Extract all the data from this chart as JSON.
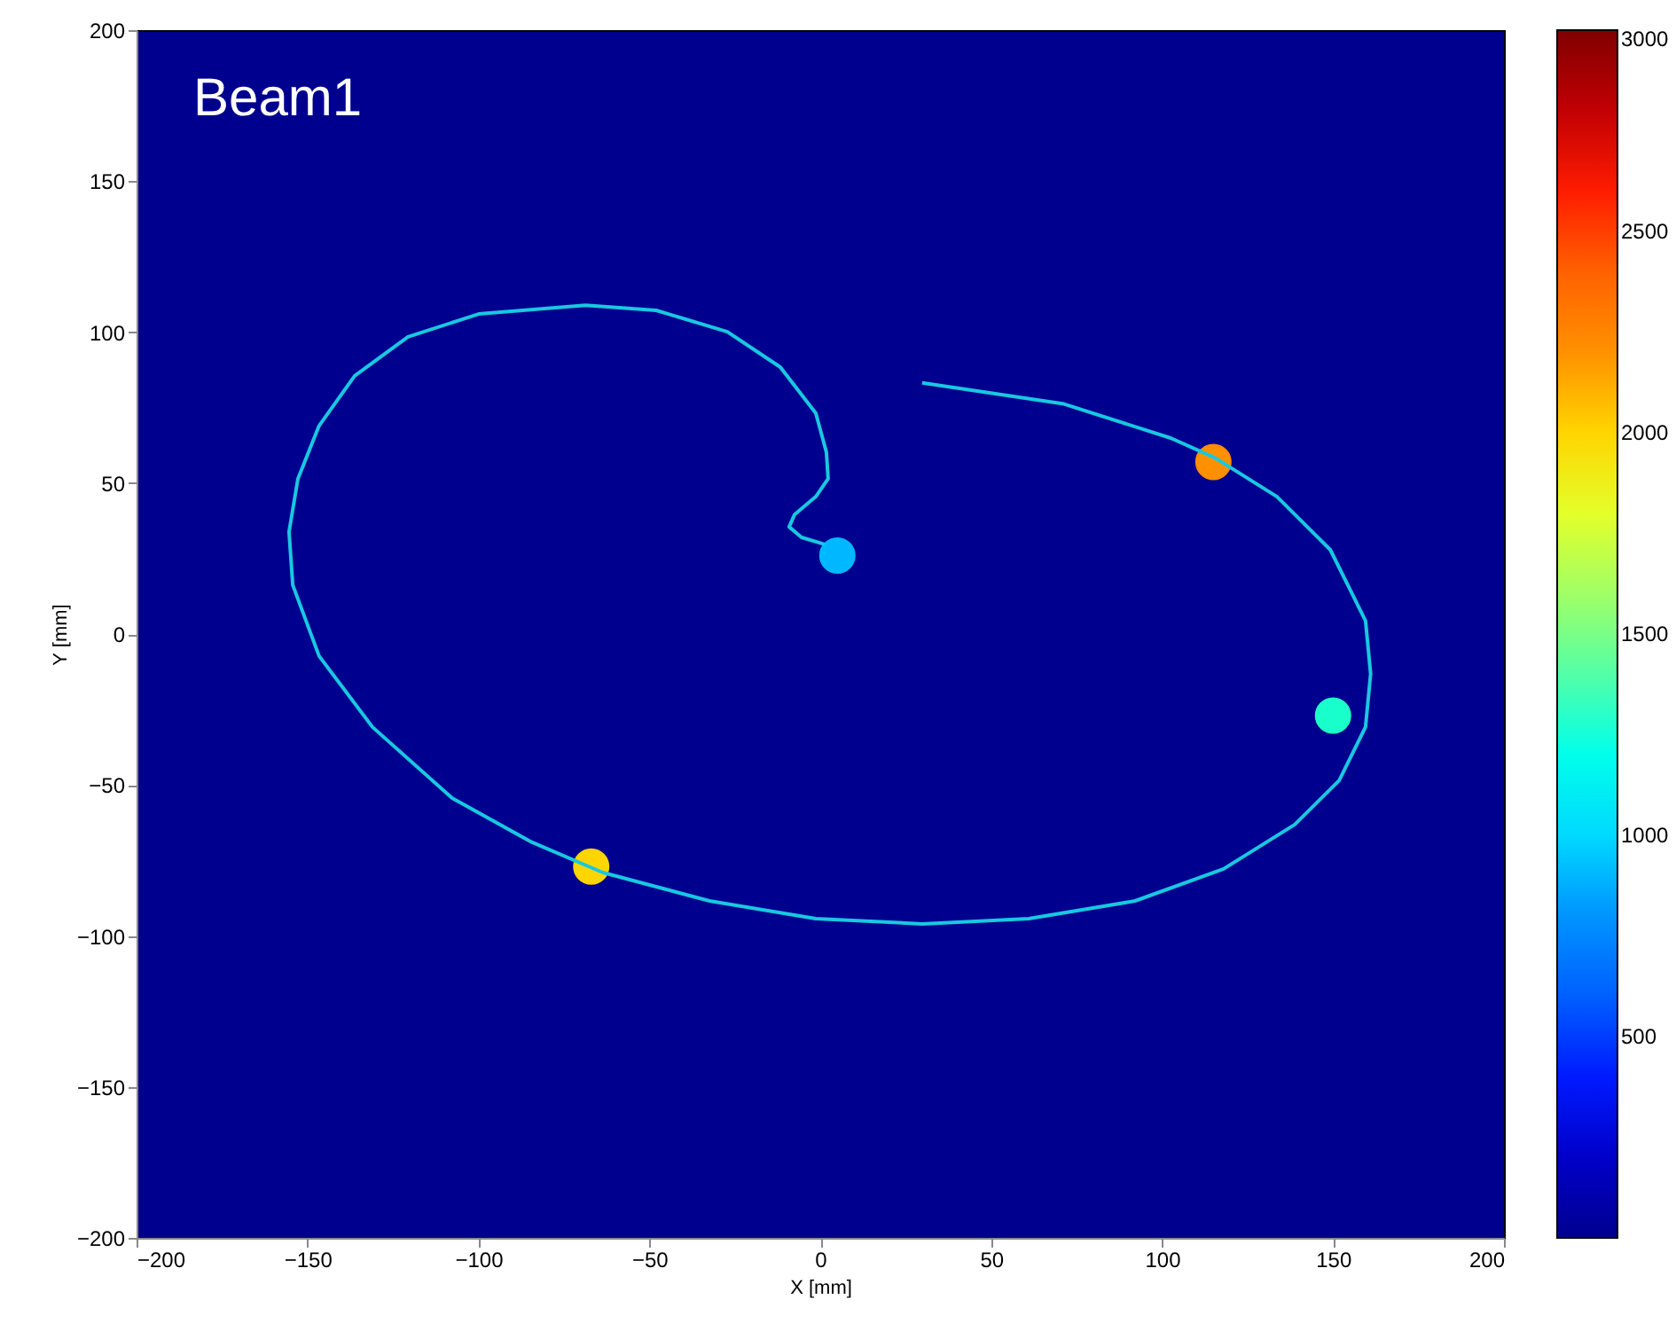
{
  "chart_data": {
    "type": "scatter",
    "xlabel": "X [mm]",
    "ylabel": "Y [mm]",
    "annotations": [
      "Beam1"
    ],
    "xlim": [
      -200,
      200
    ],
    "ylim": [
      -200,
      200
    ],
    "xticks": [
      -200,
      -150,
      -100,
      -50,
      0,
      50,
      100,
      150,
      200
    ],
    "yticks": [
      -200,
      -150,
      -100,
      -50,
      0,
      50,
      100,
      150,
      200
    ],
    "clim": [
      0,
      3000
    ],
    "cticks": [
      500,
      1000,
      1500,
      2000,
      2500,
      3000
    ],
    "grid": false,
    "series": [
      {
        "type": "line",
        "color": "#19c8e0",
        "x": [
          29.8,
          71.3,
          102.5,
          115.4,
          133.6,
          149.2,
          159.5,
          161,
          159.5,
          151.8,
          138.8,
          118,
          92.1,
          61,
          29.8,
          -1.3,
          -32.4,
          -63.6,
          -84.3,
          -107.7,
          -131,
          -146.6,
          -154.3,
          -155.4,
          -152.8,
          -146.6,
          -136.2,
          -120.6,
          -99.9,
          -68.7,
          -48,
          -27.2,
          -11.7,
          -1.3,
          1.8,
          2.3,
          -1.3,
          -7.5,
          -9.1,
          -5.5,
          1.3
        ],
        "values": [
          83.2,
          76.2,
          64.9,
          58.4,
          45.5,
          27.9,
          4.4,
          -13.2,
          -30.8,
          -48.5,
          -63.1,
          -77.8,
          -88.4,
          -94.3,
          -96,
          -94.3,
          -88.4,
          -79,
          -69,
          -54.3,
          -30.8,
          -7.3,
          16.2,
          33.8,
          51.4,
          69,
          85.5,
          98.4,
          106,
          108.9,
          107.2,
          100.1,
          88.4,
          73.1,
          60.2,
          51.4,
          45.5,
          39.6,
          35.5,
          32,
          29.7
        ]
      },
      {
        "type": "scatter",
        "colors": [
          "#ffd400",
          "#ff8c00",
          "#20ffc0",
          "#00b8ff"
        ],
        "x": [
          -67,
          115,
          150,
          5
        ],
        "values": [
          -77,
          57,
          -27,
          26
        ],
        "cvalues": [
          2000,
          2200,
          1300,
          900
        ]
      }
    ]
  }
}
